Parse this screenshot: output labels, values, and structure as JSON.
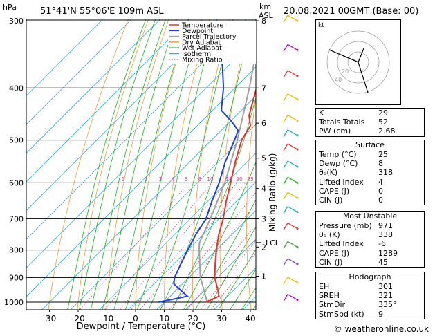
{
  "header": {
    "hpa_label": "hPa",
    "location": "51°41'N 55°06'E 109m ASL",
    "km_label": "km",
    "asl_label": "ASL",
    "datetime": "20.08.2021 00GMT (Base: 00)"
  },
  "footer": {
    "copyright": "© weatheronline.co.uk"
  },
  "chart_data": {
    "type": "skew-t",
    "xlabel": "Dewpoint / Temperature (°C)",
    "right_axis_label": "Mixing Ratio (g/kg)",
    "x_ticks": [
      -30,
      -20,
      -10,
      0,
      10,
      20,
      30,
      40
    ],
    "pressure_levels": [
      300,
      400,
      500,
      600,
      700,
      800,
      900,
      1000
    ],
    "km_ticks": [
      {
        "p": 300,
        "label": "8"
      },
      {
        "p": 400,
        "label": "7"
      },
      {
        "p": 465,
        "label": "6"
      },
      {
        "p": 540,
        "label": "5"
      },
      {
        "p": 615,
        "label": "4"
      },
      {
        "p": 700,
        "label": "3"
      },
      {
        "p": 790,
        "label": "2"
      },
      {
        "p": 895,
        "label": "1"
      }
    ],
    "lcl": {
      "p": 775,
      "label": "LCL"
    },
    "mixing_ratio_labels": [
      "1",
      "2",
      "3",
      "4",
      "5",
      "8",
      "10",
      "15",
      "20",
      "25"
    ],
    "mixing_ratio_values": [
      1,
      2,
      3,
      4,
      5,
      8,
      10,
      15,
      20,
      25
    ],
    "legend": [
      {
        "label": "Temperature",
        "color": "#e8322a"
      },
      {
        "label": "Dewpoint",
        "color": "#1f3fd8"
      },
      {
        "label": "Parcel Trajectory",
        "color": "#a0a0a0"
      },
      {
        "label": "Dry Adiabat",
        "color": "#e8a040"
      },
      {
        "label": "Wet Adiabat",
        "color": "#20b020"
      },
      {
        "label": "Isotherm",
        "color": "#30b0e0"
      },
      {
        "label": "Mixing Ratio",
        "color": "#d040b0"
      }
    ],
    "temperature": [
      {
        "p": 1000,
        "t": 24.5
      },
      {
        "p": 975,
        "t": 27.0
      },
      {
        "p": 950,
        "t": 24.5
      },
      {
        "p": 900,
        "t": 19.0
      },
      {
        "p": 850,
        "t": 14.5
      },
      {
        "p": 800,
        "t": 10.0
      },
      {
        "p": 750,
        "t": 5.5
      },
      {
        "p": 700,
        "t": 1.5
      },
      {
        "p": 650,
        "t": -3.5
      },
      {
        "p": 600,
        "t": -8.5
      },
      {
        "p": 550,
        "t": -14.0
      },
      {
        "p": 500,
        "t": -19.5
      },
      {
        "p": 470,
        "t": -21.5
      },
      {
        "p": 450,
        "t": -25.5
      },
      {
        "p": 400,
        "t": -32.5
      },
      {
        "p": 350,
        "t": -40.5
      },
      {
        "p": 300,
        "t": -49.0
      }
    ],
    "dewpoint": [
      {
        "p": 1000,
        "t": 8.0
      },
      {
        "p": 975,
        "t": 16.0
      },
      {
        "p": 950,
        "t": 11.5
      },
      {
        "p": 925,
        "t": 7.0
      },
      {
        "p": 900,
        "t": 5.0
      },
      {
        "p": 850,
        "t": 2.5
      },
      {
        "p": 800,
        "t": 0.0
      },
      {
        "p": 750,
        "t": -2.5
      },
      {
        "p": 700,
        "t": -4.5
      },
      {
        "p": 650,
        "t": -8.5
      },
      {
        "p": 600,
        "t": -12.5
      },
      {
        "p": 550,
        "t": -17.5
      },
      {
        "p": 500,
        "t": -22.0
      },
      {
        "p": 480,
        "t": -24.0
      },
      {
        "p": 460,
        "t": -30.0
      },
      {
        "p": 440,
        "t": -37.0
      },
      {
        "p": 400,
        "t": -44.0
      },
      {
        "p": 360,
        "t": -53.0
      },
      {
        "p": 340,
        "t": -55.0
      },
      {
        "p": 300,
        "t": -58.0
      }
    ],
    "parcel": [
      {
        "p": 1000,
        "t": 25.0
      },
      {
        "p": 900,
        "t": 14.0
      },
      {
        "p": 800,
        "t": 4.0
      },
      {
        "p": 775,
        "t": 1.5
      },
      {
        "p": 700,
        "t": -3.0
      },
      {
        "p": 600,
        "t": -10.5
      },
      {
        "p": 500,
        "t": -21.0
      },
      {
        "p": 400,
        "t": -35.0
      },
      {
        "p": 300,
        "t": -54.0
      }
    ]
  },
  "indices": {
    "rows": [
      {
        "k": "K",
        "v": "29"
      },
      {
        "k": "Totals Totals",
        "v": "52"
      },
      {
        "k": "PW (cm)",
        "v": "2.68"
      }
    ],
    "surface": {
      "title": "Surface",
      "rows": [
        {
          "k": "Temp (°C)",
          "v": "25"
        },
        {
          "k": "Dewp (°C)",
          "v": "8"
        },
        {
          "k": "θₑ(K)",
          "v": "318"
        },
        {
          "k": "Lifted Index",
          "v": "4"
        },
        {
          "k": "CAPE (J)",
          "v": "0"
        },
        {
          "k": "CIN (J)",
          "v": "0"
        }
      ]
    },
    "most_unstable": {
      "title": "Most Unstable",
      "rows": [
        {
          "k": "Pressure (mb)",
          "v": "971"
        },
        {
          "k": "θₑ (K)",
          "v": "338"
        },
        {
          "k": "Lifted Index",
          "v": "-6"
        },
        {
          "k": "CAPE (J)",
          "v": "1289"
        },
        {
          "k": "CIN (J)",
          "v": "45"
        }
      ]
    },
    "hodograph": {
      "title": "Hodograph",
      "rows": [
        {
          "k": "EH",
          "v": "301"
        },
        {
          "k": "SREH",
          "v": "321"
        },
        {
          "k": "StmDir",
          "v": "335°"
        },
        {
          "k": "StmSpd (kt)",
          "v": "9"
        }
      ]
    }
  },
  "hodograph_plot": {
    "unit_label": "kt",
    "ring_labels": [
      "20",
      "40"
    ]
  },
  "colors": {
    "temperature": "#e8322a",
    "dewpoint": "#1f3fd8",
    "parcel": "#a0a0a0",
    "dry_adiabat": "#e8a040",
    "wet_adiabat": "#20b020",
    "isotherm": "#30b0e0",
    "mixing_ratio": "#d040b0"
  }
}
